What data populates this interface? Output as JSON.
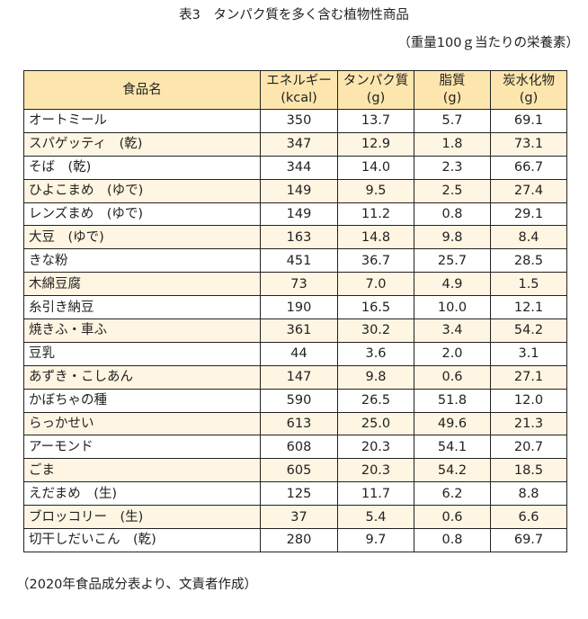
{
  "title": "表3　タンパク質を多く含む植物性商品",
  "unit_note": "（重量100ｇ当たりの栄養素）",
  "table": {
    "headers": [
      {
        "line1": "食品名",
        "line2": ""
      },
      {
        "line1": "エネルギー",
        "line2": "(kcal)"
      },
      {
        "line1": "タンパク質",
        "line2": "(g)"
      },
      {
        "line1": "脂質",
        "line2": "(g)"
      },
      {
        "line1": "炭水化物",
        "line2": "(g)"
      }
    ],
    "rows": [
      [
        "オートミール",
        "350",
        "13.7",
        "5.7",
        "69.1"
      ],
      [
        "スパゲッティ　(乾)",
        "347",
        "12.9",
        "1.8",
        "73.1"
      ],
      [
        "そば　(乾)",
        "344",
        "14.0",
        "2.3",
        "66.7"
      ],
      [
        "ひよこまめ　(ゆで)",
        "149",
        "9.5",
        "2.5",
        "27.4"
      ],
      [
        "レンズまめ　(ゆで)",
        "149",
        "11.2",
        "0.8",
        "29.1"
      ],
      [
        "大豆　(ゆで)",
        "163",
        "14.8",
        "9.8",
        "8.4"
      ],
      [
        "きな粉",
        "451",
        "36.7",
        "25.7",
        "28.5"
      ],
      [
        "木綿豆腐",
        "73",
        "7.0",
        "4.9",
        "1.5"
      ],
      [
        "糸引き納豆",
        "190",
        "16.5",
        "10.0",
        "12.1"
      ],
      [
        "焼きふ・車ふ",
        "361",
        "30.2",
        "3.4",
        "54.2"
      ],
      [
        "豆乳",
        "44",
        "3.6",
        "2.0",
        "3.1"
      ],
      [
        "あずき・こしあん",
        "147",
        "9.8",
        "0.6",
        "27.1"
      ],
      [
        "かぼちゃの種",
        "590",
        "26.5",
        "51.8",
        "12.0"
      ],
      [
        "らっかせい",
        "613",
        "25.0",
        "49.6",
        "21.3"
      ],
      [
        "アーモンド",
        "608",
        "20.3",
        "54.1",
        "20.7"
      ],
      [
        "ごま",
        "605",
        "20.3",
        "54.2",
        "18.5"
      ],
      [
        "えだまめ　(生)",
        "125",
        "11.7",
        "6.2",
        "8.8"
      ],
      [
        "ブロッコリー　(生)",
        "37",
        "5.4",
        "0.6",
        "6.6"
      ],
      [
        "切干しだいこん　(乾)",
        "280",
        "9.7",
        "0.8",
        "69.7"
      ]
    ]
  },
  "source_note": "（2020年食品成分表より、文責者作成）",
  "colors": {
    "header_bg": "#fde6ad",
    "stripe_bg": "#fef5e2",
    "border": "#222222"
  }
}
